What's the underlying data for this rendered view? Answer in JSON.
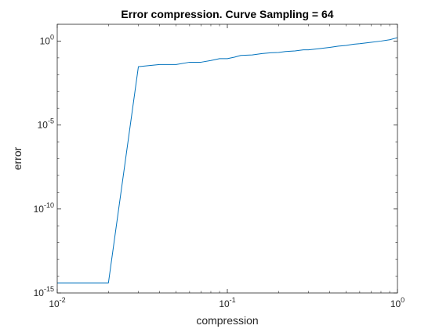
{
  "chart_data": {
    "type": "line",
    "title": "Error compression. Curve Sampling = 64",
    "xlabel": "compression",
    "ylabel": "error",
    "xscale": "log",
    "yscale": "log",
    "xlim": [
      0.01,
      1
    ],
    "ylim": [
      1e-15,
      10
    ],
    "grid": false,
    "box": true,
    "x_ticks": [
      {
        "value": 0.01,
        "base": "10",
        "exp": "-2"
      },
      {
        "value": 0.1,
        "base": "10",
        "exp": "-1"
      },
      {
        "value": 1,
        "base": "10",
        "exp": "0"
      }
    ],
    "y_ticks": [
      {
        "value": 1e-15,
        "base": "10",
        "exp": "-15"
      },
      {
        "value": 1e-10,
        "base": "10",
        "exp": "-10"
      },
      {
        "value": 1e-05,
        "base": "10",
        "exp": "-5"
      },
      {
        "value": 1,
        "base": "10",
        "exp": "0"
      }
    ],
    "series": [
      {
        "color": "#0072BD",
        "x": [
          0.01,
          0.02,
          0.03,
          0.035,
          0.04,
          0.05,
          0.06,
          0.07,
          0.08,
          0.09,
          0.1,
          0.11,
          0.12,
          0.14,
          0.16,
          0.18,
          0.2,
          0.22,
          0.25,
          0.28,
          0.3,
          0.35,
          0.4,
          0.45,
          0.5,
          0.55,
          0.6,
          0.7,
          0.8,
          0.9,
          1.0
        ],
        "y": [
          4e-15,
          4e-15,
          0.03,
          0.035,
          0.04,
          0.04,
          0.055,
          0.055,
          0.07,
          0.09,
          0.09,
          0.11,
          0.14,
          0.15,
          0.18,
          0.2,
          0.21,
          0.24,
          0.26,
          0.3,
          0.3,
          0.36,
          0.42,
          0.5,
          0.55,
          0.65,
          0.7,
          0.85,
          1.0,
          1.2,
          1.6
        ]
      }
    ]
  }
}
